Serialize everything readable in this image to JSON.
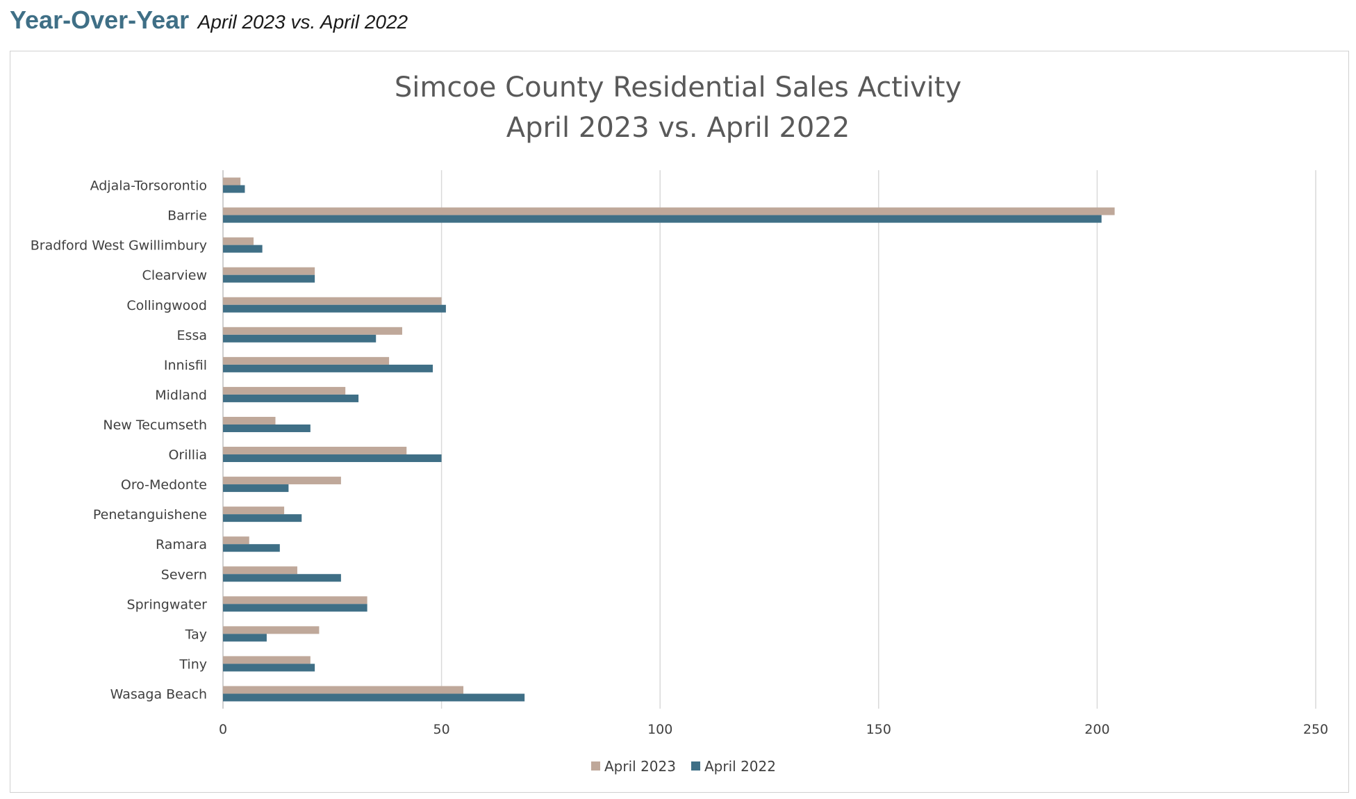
{
  "heading": {
    "main": "Year-Over-Year",
    "sub": "April 2023 vs. April 2022"
  },
  "chart_data": {
    "type": "bar",
    "orientation": "horizontal",
    "title": "Simcoe County Residential Sales Activity",
    "subtitle": "April 2023 vs. April 2022",
    "xlabel": "",
    "ylabel": "",
    "xlim": [
      0,
      250
    ],
    "xticks": [
      0,
      50,
      100,
      150,
      200,
      250
    ],
    "grid": true,
    "legend_position": "bottom",
    "categories": [
      "Adjala-Torsorontio",
      "Barrie",
      "Bradford West Gwillimbury",
      "Clearview",
      "Collingwood",
      "Essa",
      "Innisfil",
      "Midland",
      "New Tecumseth",
      "Orillia",
      "Oro-Medonte",
      "Penetanguishene",
      "Ramara",
      "Severn",
      "Springwater",
      "Tay",
      "Tiny",
      "Wasaga Beach"
    ],
    "series": [
      {
        "name": "April 2023",
        "color": "#bfa89a",
        "values": [
          4,
          204,
          7,
          21,
          50,
          41,
          38,
          28,
          12,
          42,
          27,
          14,
          6,
          17,
          33,
          22,
          20,
          55
        ]
      },
      {
        "name": "April 2022",
        "color": "#3f6f86",
        "values": [
          5,
          201,
          9,
          21,
          51,
          35,
          48,
          31,
          20,
          50,
          15,
          18,
          13,
          27,
          33,
          10,
          21,
          69
        ]
      }
    ]
  }
}
